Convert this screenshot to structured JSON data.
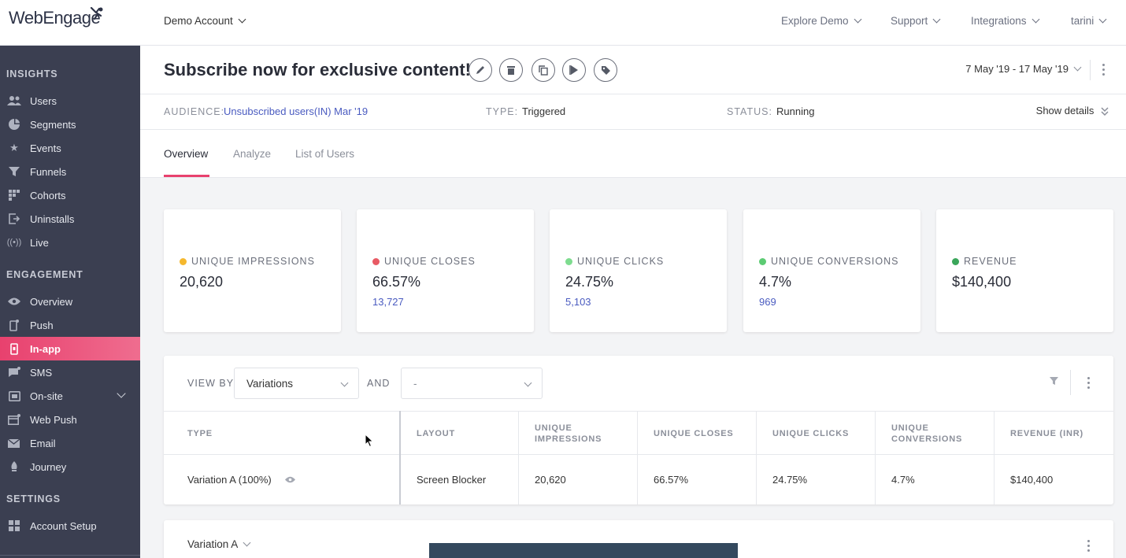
{
  "topbar": {
    "logo": "WebEngage",
    "account": "Demo Account",
    "nav": [
      "Explore Demo",
      "Support",
      "Integrations",
      "tarini"
    ]
  },
  "sidebar": {
    "insights_title": "INSIGHTS",
    "insights": [
      {
        "label": "Users",
        "icon": "users-icon"
      },
      {
        "label": "Segments",
        "icon": "pie-icon"
      },
      {
        "label": "Events",
        "icon": "star-icon"
      },
      {
        "label": "Funnels",
        "icon": "funnel-icon"
      },
      {
        "label": "Cohorts",
        "icon": "grid-icon"
      },
      {
        "label": "Uninstalls",
        "icon": "exit-icon"
      },
      {
        "label": "Live",
        "icon": "broadcast-icon"
      }
    ],
    "engagement_title": "ENGAGEMENT",
    "engagement": [
      {
        "label": "Overview",
        "icon": "eye-icon"
      },
      {
        "label": "Push",
        "icon": "phone-icon"
      },
      {
        "label": "In-app",
        "icon": "inapp-icon"
      },
      {
        "label": "SMS",
        "icon": "sms-icon"
      },
      {
        "label": "On-site",
        "icon": "onsite-icon"
      },
      {
        "label": "Web Push",
        "icon": "webpush-icon"
      },
      {
        "label": "Email",
        "icon": "email-icon"
      },
      {
        "label": "Journey",
        "icon": "journey-icon"
      }
    ],
    "settings_title": "SETTINGS",
    "settings": [
      {
        "label": "Account Setup",
        "icon": "setup-icon"
      }
    ],
    "active_color": "#e8416e"
  },
  "header": {
    "title": "Subscribe now for exclusive content!",
    "date_range": "7 May '19 - 17 May '19"
  },
  "meta": {
    "audience_label": "AUDIENCE:",
    "audience_value": "Unsubscribed users(IN) Mar '19",
    "type_label": "TYPE:",
    "type_value": "Triggered",
    "status_label": "STATUS:",
    "status_value": "Running",
    "show_details": "Show details"
  },
  "tabs": [
    "Overview",
    "Analyze",
    "List of Users"
  ],
  "stats": [
    {
      "label": "UNIQUE IMPRESSIONS",
      "value": "20,620",
      "sub": "",
      "color": "#f5b82e"
    },
    {
      "label": "UNIQUE CLOSES",
      "value": "66.57%",
      "sub": "13,727",
      "color": "#e85a64"
    },
    {
      "label": "UNIQUE CLICKS",
      "value": "24.75%",
      "sub": "5,103",
      "color": "#7edc8f"
    },
    {
      "label": "UNIQUE CONVERSIONS",
      "value": "4.7%",
      "sub": "969",
      "color": "#5ccb73"
    },
    {
      "label": "REVENUE",
      "value": "$140,400",
      "sub": "",
      "color": "#3aa65a"
    }
  ],
  "table": {
    "view_by_label": "VIEW BY",
    "view_by_value": "Variations",
    "and_label": "AND",
    "and_value": "-",
    "columns": [
      "TYPE",
      "LAYOUT",
      "UNIQUE IMPRESSIONS",
      "UNIQUE CLOSES",
      "UNIQUE CLICKS",
      "UNIQUE CONVERSIONS",
      "REVENUE (INR)"
    ],
    "rows": [
      [
        "Variation A (100%)",
        "Screen Blocker",
        "20,620",
        "66.57%",
        "24.75%",
        "4.7%",
        "$140,400"
      ]
    ]
  },
  "variation_panel": {
    "label": "Variation A"
  }
}
